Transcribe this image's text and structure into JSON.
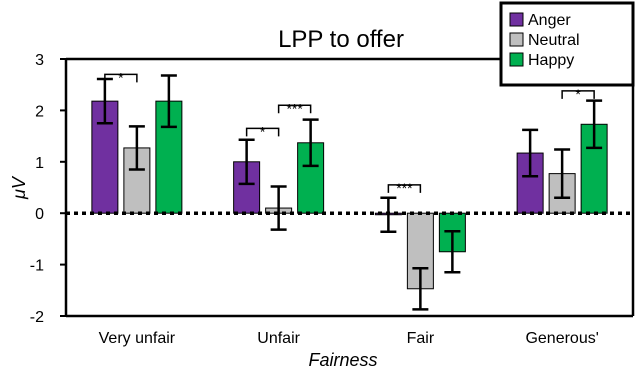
{
  "chart_data": {
    "type": "bar",
    "title": "LPP to offer",
    "xlabel": "Fairness",
    "ylabel": "μV",
    "categories": [
      "Very unfair",
      "Unfair",
      "Fair",
      "Generous'"
    ],
    "ylim": [
      -2,
      3
    ],
    "yticks": [
      -2,
      -1,
      0,
      1,
      2,
      3
    ],
    "zero_line": "dotted",
    "legend_position": "top-right",
    "series": [
      {
        "name": "Anger",
        "color": "#7030A0",
        "values": [
          2.18,
          1.0,
          -0.03,
          1.17
        ],
        "errors": [
          0.43,
          0.43,
          0.33,
          0.45
        ]
      },
      {
        "name": "Neutral",
        "color": "#BFBFBF",
        "values": [
          1.27,
          0.1,
          -1.47,
          0.77
        ],
        "errors": [
          0.42,
          0.42,
          0.4,
          0.47
        ]
      },
      {
        "name": "Happy",
        "color": "#00B050",
        "values": [
          2.18,
          1.37,
          -0.75,
          1.73
        ],
        "errors": [
          0.5,
          0.45,
          0.4,
          0.46
        ]
      }
    ],
    "significance": [
      {
        "category": 0,
        "from": 0,
        "to": 1,
        "label": "*",
        "y": 2.7
      },
      {
        "category": 1,
        "from": 0,
        "to": 1,
        "label": "*",
        "y": 1.65
      },
      {
        "category": 1,
        "from": 1,
        "to": 2,
        "label": "***",
        "y": 2.1
      },
      {
        "category": 2,
        "from": 0,
        "to": 1,
        "label": "***",
        "y": 0.55
      },
      {
        "category": 3,
        "from": 1,
        "to": 2,
        "label": "*",
        "y": 2.38
      }
    ]
  }
}
